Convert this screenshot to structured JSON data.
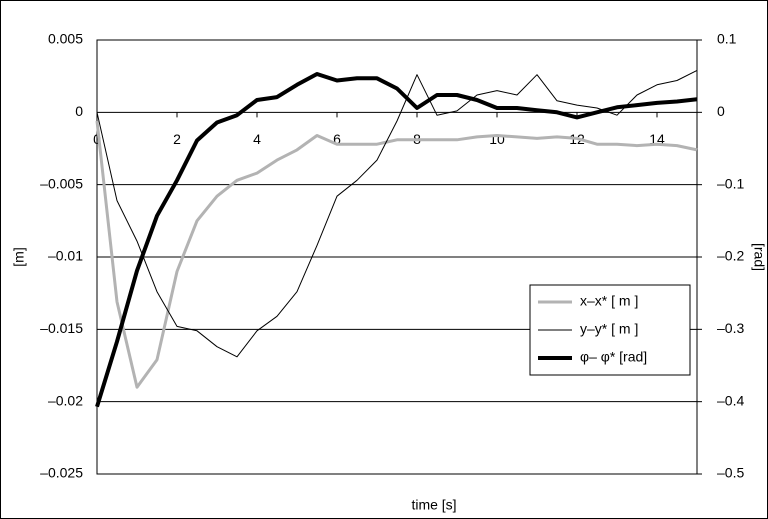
{
  "chart_data": {
    "type": "line",
    "xlabel": "time [s]",
    "ylabel": "[m]",
    "y2label": "[rad]",
    "x": [
      0,
      0.5,
      1,
      1.5,
      2,
      2.5,
      3,
      3.5,
      4,
      4.5,
      5,
      5.5,
      6,
      6.5,
      7,
      7.5,
      8,
      8.5,
      9,
      9.5,
      10,
      10.5,
      11,
      11.5,
      12,
      12.5,
      13,
      13.5,
      14,
      14.5,
      15
    ],
    "xlim": [
      0,
      15
    ],
    "xticks": [
      0,
      2,
      4,
      6,
      8,
      10,
      12,
      14
    ],
    "ylim": [
      -0.025,
      0.005
    ],
    "yticks": [
      {
        "value": 0.005,
        "label": "0.005"
      },
      0,
      {
        "value": -0.005,
        "label": "–0.005"
      },
      {
        "value": -0.01,
        "label": "–0.01"
      },
      {
        "value": -0.015,
        "label": "–0.015"
      },
      {
        "value": -0.02,
        "label": "–0.02"
      },
      {
        "value": -0.025,
        "label": "–0.025"
      }
    ],
    "y2lim": [
      -0.5,
      0.1
    ],
    "y2ticks": [
      0.1,
      0,
      {
        "value": -0.1,
        "label": "–0.1"
      },
      {
        "value": -0.2,
        "label": "–0.2"
      },
      {
        "value": -0.3,
        "label": "–0.3"
      },
      {
        "value": -0.4,
        "label": "–0.4"
      },
      {
        "value": -0.5,
        "label": "–0.5"
      }
    ],
    "grid": true,
    "legend": "lower right",
    "series": [
      {
        "name": "x–x* [ m ]",
        "color": "#b3b3b3",
        "width": 3,
        "values": [
          -0.0006,
          -0.0131,
          -0.019,
          -0.0171,
          -0.011,
          -0.0075,
          -0.0058,
          -0.0047,
          -0.0042,
          -0.0033,
          -0.0026,
          -0.0016,
          -0.0022,
          -0.0022,
          -0.0022,
          -0.0019,
          -0.0019,
          -0.0019,
          -0.0019,
          -0.0017,
          -0.0016,
          -0.0017,
          -0.0018,
          -0.0017,
          -0.0018,
          -0.0022,
          -0.0022,
          -0.0023,
          -0.0022,
          -0.0023,
          -0.0026
        ]
      },
      {
        "name": "y–y* [ m ]",
        "color": "#000000",
        "width": 1,
        "values": [
          0,
          -0.0061,
          -0.0089,
          -0.0124,
          -0.0148,
          -0.0151,
          -0.0162,
          -0.0169,
          -0.0151,
          -0.0141,
          -0.0124,
          -0.0092,
          -0.0058,
          -0.0047,
          -0.0033,
          -0.0006,
          0.0026,
          -0.0002,
          0.0001,
          0.0012,
          0.0015,
          0.0012,
          0.0026,
          0.0008,
          0.0005,
          0.0003,
          -0.0002,
          0.0012,
          0.0019,
          0.0022,
          0.0029
        ]
      },
      {
        "name": "φ– φ* [rad]",
        "color": "#000000",
        "width": 4,
        "axis": "y2",
        "values": [
          -0.407,
          -0.317,
          -0.219,
          -0.143,
          -0.094,
          -0.039,
          -0.014,
          -0.004,
          0.017,
          0.021,
          0.038,
          0.053,
          0.044,
          0.047,
          0.047,
          0.033,
          0.006,
          0.024,
          0.024,
          0.017,
          0.006,
          0.006,
          0.003,
          0,
          -0.007,
          0,
          0.007,
          0.01,
          0.013,
          0.015,
          0.018
        ]
      }
    ]
  }
}
